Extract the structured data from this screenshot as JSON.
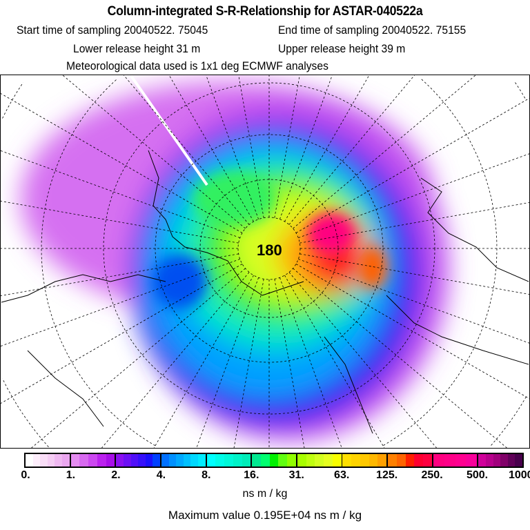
{
  "header": {
    "title": "Column-integrated S-R-Relationship for ASTAR-040522a",
    "start_time": "Start time of sampling 20040522. 75045",
    "end_time": "End time of sampling 20040522. 75155",
    "lower_height": "Lower release height   31 m",
    "upper_height": "Upper release height   39 m",
    "met_data": "Meteorological data used is 1x1 deg ECMWF analyses"
  },
  "colorbar": {
    "ticks": [
      "0.",
      "1.",
      "2.",
      "4.",
      "8.",
      "16.",
      "31.",
      "63.",
      "125.",
      "250.",
      "500.",
      "1000."
    ],
    "segments": [
      [
        "#ffffff",
        "#fdeefb",
        "#f9ddf7",
        "#f5cdf4",
        "#efb8f1",
        "#eaa6ef"
      ],
      [
        "#e48cf0",
        "#d86af0",
        "#cc48f0",
        "#bb22ee",
        "#a80ee8"
      ],
      [
        "#8a10f0",
        "#6c10f4",
        "#5010f8",
        "#3610fa",
        "#1a10fc",
        "#0040ff"
      ],
      [
        "#0070ff",
        "#0090ff",
        "#00a8ff",
        "#00c0ff",
        "#00d8ff",
        "#00ecff"
      ],
      [
        "#00ffff",
        "#00fce8",
        "#00f8d8",
        "#00f2c8",
        "#00ecb8"
      ],
      [
        "#00e890",
        "#00ff70",
        "#00f000",
        "#60ff10",
        "#90ff00"
      ],
      [
        "#a8ff00",
        "#c0ff10",
        "#d4ff20",
        "#e6ff20",
        "#f8ff00"
      ],
      [
        "#ffe000",
        "#ffd400",
        "#ffc800",
        "#ffb800",
        "#ffa000"
      ],
      [
        "#ff8000",
        "#ff6400",
        "#ff2000",
        "#ff0030",
        "#ff0040"
      ],
      [
        "#ff0080",
        "#ff0088",
        "#ff0090",
        "#f8009a"
      ],
      [
        "#d0009a",
        "#b8008c",
        "#a0007c",
        "#800068",
        "#600058",
        "#48004c"
      ]
    ],
    "units": "ns m / kg"
  },
  "footer": {
    "max_value": "Maximum value  0.195E+04 ns m / kg"
  },
  "map": {
    "projection": "polar-stereographic",
    "center_label": "180"
  }
}
